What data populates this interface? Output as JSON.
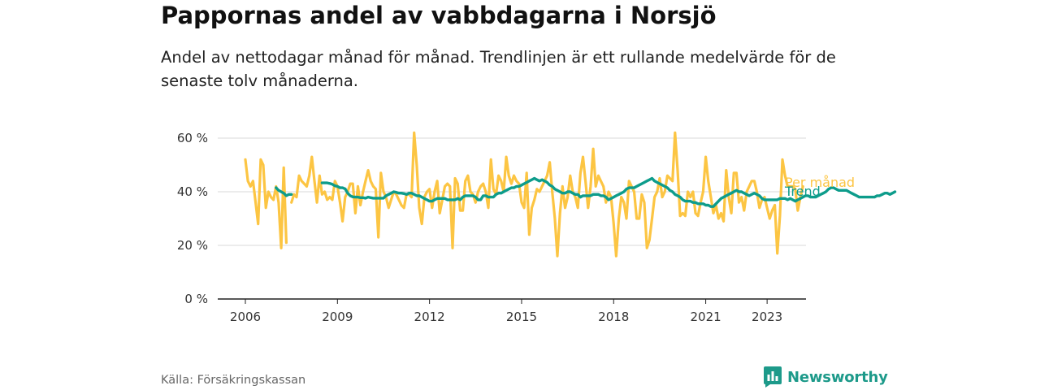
{
  "header": {
    "title": "Pappornas andel av vabbdagarna i Norsjö",
    "subtitle": "Andel av nettodagar månad för månad. Trendlinjen är ett rullande medelvärde för de senaste tolv månaderna."
  },
  "footer": {
    "source": "Källa: Försäkringskassan",
    "brand": "Newsworthy"
  },
  "colors": {
    "monthly": "#fcc543",
    "trend": "#0d9c8b",
    "grid": "#d9d9d9",
    "axis": "#222222",
    "brand": "#1d9a8a"
  },
  "chart_data": {
    "type": "line",
    "x_unit": "year",
    "xlim": [
      2006.0,
      2023.42
    ],
    "ylim": [
      0,
      60
    ],
    "y_ticks": [
      0,
      20,
      40,
      60
    ],
    "y_tick_labels": [
      "0 %",
      "20 %",
      "40 %",
      "60 %"
    ],
    "x_ticks": [
      2006,
      2009,
      2012,
      2015,
      2018,
      2021,
      2023
    ],
    "x_tick_labels": [
      "2006",
      "2009",
      "2012",
      "2015",
      "2018",
      "2021",
      "2023"
    ],
    "grid": true,
    "series": [
      {
        "name": "Per månad",
        "start": 2006.0,
        "step_months": 1,
        "values": [
          52,
          44,
          42,
          44,
          36,
          28,
          52,
          50,
          34,
          40,
          38,
          37,
          42,
          36,
          19,
          49,
          21,
          null,
          36,
          39,
          38,
          46,
          44,
          43,
          42,
          46,
          53,
          44,
          36,
          46,
          39,
          40,
          37,
          38,
          37,
          44,
          42,
          36,
          29,
          38,
          40,
          43,
          43,
          32,
          42,
          35,
          40,
          44,
          48,
          44,
          42,
          41,
          23,
          47,
          40,
          38,
          34,
          37,
          40,
          39,
          37,
          35,
          34,
          39,
          39,
          38,
          62,
          50,
          34,
          28,
          38,
          40,
          41,
          34,
          40,
          44,
          32,
          37,
          42,
          43,
          42,
          19,
          45,
          43,
          33,
          33,
          44,
          46,
          40,
          39,
          36,
          40,
          42,
          43,
          40,
          34,
          52,
          41,
          39,
          46,
          44,
          40,
          53,
          46,
          43,
          46,
          44,
          43,
          36,
          34,
          47,
          24,
          34,
          37,
          41,
          40,
          42,
          44,
          46,
          51,
          40,
          30,
          16,
          32,
          42,
          34,
          38,
          46,
          40,
          38,
          34,
          47,
          53,
          44,
          34,
          42,
          56,
          42,
          46,
          44,
          42,
          36,
          40,
          38,
          28,
          16,
          30,
          38,
          36,
          30,
          44,
          42,
          40,
          30,
          30,
          39,
          36,
          19,
          22,
          30,
          38,
          40,
          45,
          38,
          40,
          46,
          45,
          44,
          62,
          48,
          31,
          32,
          31,
          40,
          38,
          40,
          32,
          31,
          36,
          40,
          53,
          44,
          38,
          32,
          35,
          30,
          32,
          29,
          48,
          38,
          32,
          47,
          47,
          36,
          38,
          33,
          40,
          42,
          44,
          44,
          40,
          34,
          37,
          38,
          34,
          30,
          33,
          35,
          17,
          31,
          52,
          46,
          42,
          42,
          42,
          41,
          33,
          38,
          42
        ]
      },
      {
        "name": "Trend",
        "start": 2007.0,
        "step_months": 1,
        "values": [
          41.5,
          40.5,
          40.0,
          39.5,
          38.5,
          39,
          39,
          null,
          null,
          null,
          null,
          null,
          null,
          null,
          null,
          null,
          null,
          null,
          43.3,
          43.3,
          43.3,
          43.1,
          42.8,
          42.2,
          42.0,
          41.5,
          41.5,
          41.1,
          39.5,
          38.5,
          38.1,
          38.0,
          38.0,
          37.8,
          37.8,
          37.6,
          38.0,
          37.8,
          37.6,
          37.6,
          37.6,
          37.6,
          37.6,
          38.5,
          39.0,
          39.5,
          40.0,
          39.8,
          39.5,
          39.5,
          39.3,
          39.0,
          39.5,
          39.5,
          39.0,
          38.5,
          38.5,
          38.0,
          37.5,
          37.0,
          36.5,
          36.5,
          37.0,
          37.5,
          37.5,
          37.5,
          37.5,
          37.0,
          37.0,
          37.0,
          37.0,
          37.5,
          37.0,
          38.0,
          38.5,
          38.5,
          38.5,
          38.5,
          38.0,
          37.0,
          37.0,
          38.5,
          38.5,
          38.0,
          38.0,
          38.0,
          39.0,
          39.5,
          39.5,
          40.0,
          40.5,
          41.0,
          41.5,
          41.5,
          42.0,
          42.0,
          42.5,
          43.0,
          43.5,
          44.0,
          44.5,
          45.0,
          44.5,
          44.0,
          44.5,
          44.0,
          43.5,
          42.5,
          42.0,
          41.0,
          40.5,
          40.0,
          39.5,
          39.5,
          40.0,
          40.0,
          39.5,
          39.0,
          39.0,
          38.0,
          38.5,
          38.5,
          38.5,
          38.5,
          39.0,
          39.0,
          39.0,
          38.5,
          38.5,
          38.0,
          37.0,
          37.5,
          38.0,
          38.5,
          39.0,
          39.5,
          40.0,
          41.0,
          41.5,
          41.5,
          41.5,
          42.0,
          42.5,
          43.0,
          43.5,
          44.0,
          44.5,
          45.0,
          44.0,
          43.5,
          43.0,
          42.5,
          42.0,
          41.5,
          40.5,
          40.0,
          39.0,
          38.5,
          38.0,
          37.0,
          36.5,
          36.5,
          36.5,
          36.0,
          36.0,
          35.5,
          35.5,
          35.5,
          35.0,
          35.0,
          34.5,
          34.5,
          35.5,
          36.5,
          37.5,
          38.0,
          38.5,
          39.0,
          39.5,
          40.0,
          40.5,
          40.0,
          40.0,
          39.5,
          39.0,
          38.5,
          39.0,
          39.5,
          39.0,
          38.5,
          37.5,
          37.0,
          37.0,
          37.0,
          37.0,
          37.0,
          37.0,
          37.5,
          37.5,
          37.5,
          37.0,
          37.5,
          37.0,
          36.5,
          37.0,
          37.5,
          38.0,
          38.5,
          38.5,
          38.0,
          38.0,
          38.0,
          38.5,
          39.0,
          39.5,
          40.0,
          41.0,
          41.5,
          41.5,
          41.0,
          40.5,
          40.5,
          40.5,
          40.5,
          40.0,
          39.5,
          39.0,
          38.5,
          38.0,
          38.0,
          38.0,
          38.0,
          38.0,
          38.0,
          38.0,
          38.5,
          38.5,
          39.0,
          39.5,
          39.5,
          39.0,
          39.5,
          40.0
        ]
      }
    ]
  }
}
